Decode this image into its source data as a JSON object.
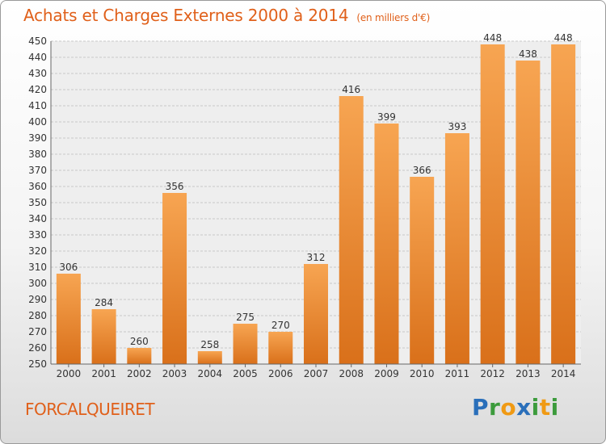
{
  "chart_data": {
    "type": "bar",
    "title": "Achats et Charges Externes 2000 à 2014",
    "subtitle": "(en milliers d'€)",
    "categories": [
      "2000",
      "2001",
      "2002",
      "2003",
      "2004",
      "2005",
      "2006",
      "2007",
      "2008",
      "2009",
      "2010",
      "2011",
      "2012",
      "2013",
      "2014"
    ],
    "values": [
      306,
      284,
      260,
      356,
      258,
      275,
      270,
      312,
      416,
      399,
      366,
      393,
      448,
      438,
      448
    ],
    "ylim": [
      250,
      450
    ],
    "ytick_step": 10,
    "grid": true,
    "legend": "none",
    "bar_color_top": "#f7a552",
    "bar_color_bottom": "#d9701a"
  },
  "footer": {
    "place": "FORCALQUEIRET",
    "logo": {
      "letters": [
        "P",
        "r",
        "o",
        "x",
        "i",
        "t",
        "i"
      ],
      "colors": [
        "#2a6fba",
        "#3c9b3c",
        "#f09a14",
        "#2a6fba",
        "#3c9b3c",
        "#f09a14",
        "#3c9b3c"
      ]
    }
  }
}
